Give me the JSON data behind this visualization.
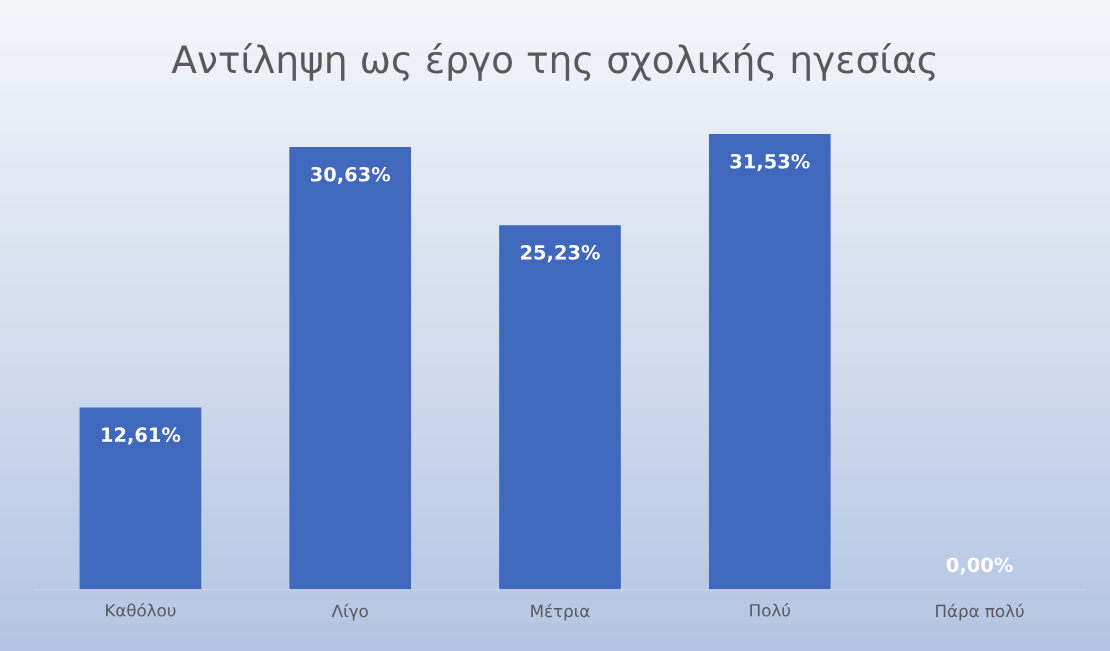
{
  "chart_data": {
    "type": "bar",
    "title": "Αντίληψη ως έργο της σχολικής ηγεσίας",
    "categories": [
      "Καθόλου",
      "Λίγο",
      "Μέτρια",
      "Πολύ",
      "Πάρα πολύ"
    ],
    "values": [
      12.61,
      30.63,
      25.23,
      31.53,
      0.0
    ],
    "value_labels": [
      "12,61%",
      "30,63%",
      "25,23%",
      "31,53%",
      "0,00%"
    ],
    "color": "#4068bd",
    "grid": false,
    "legend": false
  }
}
